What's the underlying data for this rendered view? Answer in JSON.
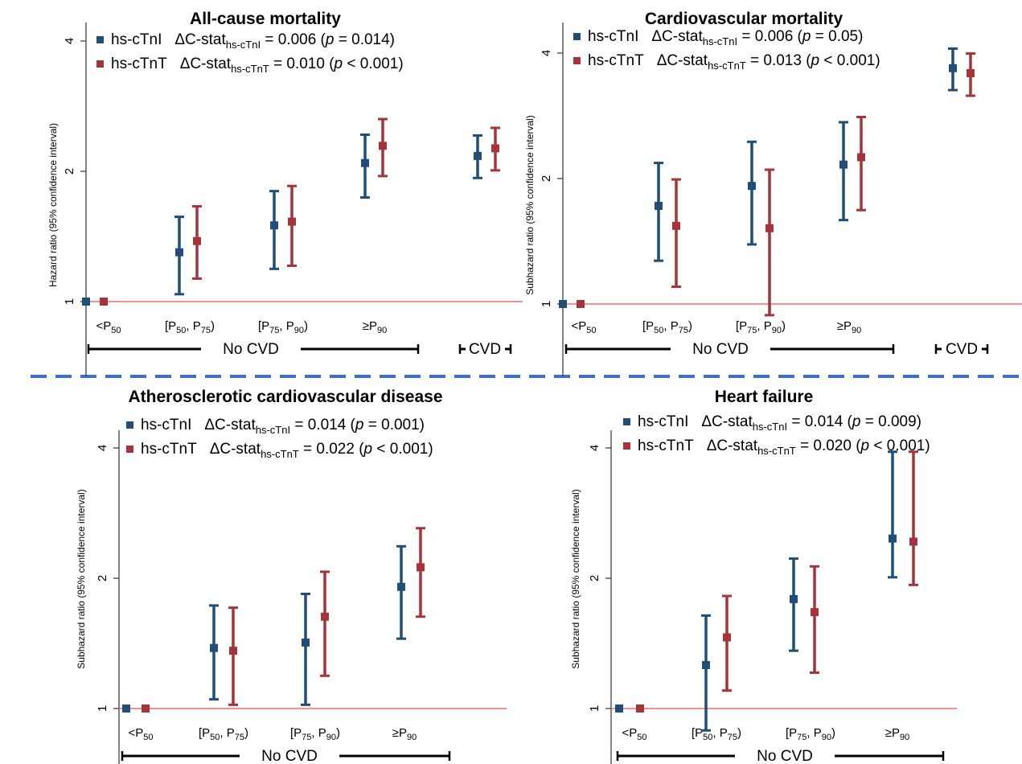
{
  "colors": {
    "hs_cTnI": "#1f4e79",
    "hs_cTnT": "#a4343a",
    "reference_line": "#f06b6b",
    "divider": "#3d6fd1"
  },
  "chart_data": [
    {
      "type": "scatter",
      "title": "All-cause mortality",
      "ylabel": "Hazard ratio (95% confidence interval)",
      "yscale": "log",
      "ylim": [
        0.72,
        4.2
      ],
      "yticks": [
        "1",
        "2",
        "4"
      ],
      "categories": [
        "<P50",
        "[P50, P75)",
        "[P75, P90)",
        "≥P90",
        "CVD"
      ],
      "category_labels": [
        {
          "main": "<P",
          "sub": "50",
          "rest": ""
        },
        {
          "main": "[P",
          "sub": "50",
          "rest": ", P",
          "sub2": "75",
          "rest2": ")"
        },
        {
          "main": "[P",
          "sub": "75",
          "rest": ", P",
          "sub2": "90",
          "rest2": ")"
        },
        {
          "main": "≥P",
          "sub": "90",
          "rest": ""
        },
        {
          "main": "",
          "sub": "",
          "rest": ""
        }
      ],
      "groups": [
        {
          "label": "No CVD"
        },
        {
          "label": "CVD"
        }
      ],
      "legend": [
        {
          "name": "hs-cTnI",
          "stat_pre": "ΔC-stat",
          "stat_sub": "hs-cTnI",
          "stat_val": " = 0.006 (",
          "p": "p",
          "p_val": " = 0.014)"
        },
        {
          "name": "hs-cTnT",
          "stat_pre": "ΔC-stat",
          "stat_sub": "hs-cTnT",
          "stat_val": " = 0.010 (",
          "p": "p",
          "p_val": " < 0.001)"
        }
      ],
      "series": [
        {
          "name": "hs-cTnI",
          "values": [
            {
              "est": 1.0,
              "lo": null,
              "hi": null
            },
            {
              "est": 1.3,
              "lo": 1.04,
              "hi": 1.57
            },
            {
              "est": 1.5,
              "lo": 1.19,
              "hi": 1.8
            },
            {
              "est": 2.09,
              "lo": 1.74,
              "hi": 2.43
            },
            {
              "est": 2.17,
              "lo": 1.93,
              "hi": 2.42
            }
          ]
        },
        {
          "name": "hs-cTnT",
          "values": [
            {
              "est": 1.0,
              "lo": null,
              "hi": null
            },
            {
              "est": 1.38,
              "lo": 1.13,
              "hi": 1.66
            },
            {
              "est": 1.53,
              "lo": 1.21,
              "hi": 1.85
            },
            {
              "est": 2.29,
              "lo": 1.95,
              "hi": 2.64
            },
            {
              "est": 2.26,
              "lo": 2.01,
              "hi": 2.52
            }
          ]
        }
      ]
    },
    {
      "type": "scatter",
      "title": "Cardiovascular mortality",
      "ylabel": "Subhazard ratio (95% confidence interval)",
      "yscale": "log",
      "ylim": [
        0.72,
        4.4
      ],
      "yticks": [
        "1",
        "2",
        "4"
      ],
      "categories": [
        "<P50",
        "[P50, P75)",
        "[P75, P90)",
        "≥P90",
        "CVD"
      ],
      "category_labels": [
        {
          "main": "<P",
          "sub": "50",
          "rest": ""
        },
        {
          "main": "[P",
          "sub": "50",
          "rest": ", P",
          "sub2": "75",
          "rest2": ")"
        },
        {
          "main": "[P",
          "sub": "75",
          "rest": ", P",
          "sub2": "90",
          "rest2": ")"
        },
        {
          "main": "≥P",
          "sub": "90",
          "rest": ""
        },
        {
          "main": "",
          "sub": "",
          "rest": ""
        }
      ],
      "groups": [
        {
          "label": "No CVD"
        },
        {
          "label": "CVD"
        }
      ],
      "legend": [
        {
          "name": "hs-cTnI",
          "stat_pre": "ΔC-stat",
          "stat_sub": "hs-cTnI",
          "stat_val": " = 0.006 (",
          "p": "p",
          "p_val": " = 0.05)"
        },
        {
          "name": "hs-cTnT",
          "stat_pre": "ΔC-stat",
          "stat_sub": "hs-cTnT",
          "stat_val": " = 0.013 (",
          "p": "p",
          "p_val": " < 0.001)"
        }
      ],
      "series": [
        {
          "name": "hs-cTnI",
          "values": [
            {
              "est": 1.0,
              "lo": null,
              "hi": null
            },
            {
              "est": 1.72,
              "lo": 1.27,
              "hi": 2.18
            },
            {
              "est": 1.92,
              "lo": 1.39,
              "hi": 2.45
            },
            {
              "est": 2.16,
              "lo": 1.59,
              "hi": 2.73
            },
            {
              "est": 3.68,
              "lo": 3.26,
              "hi": 4.1
            }
          ]
        },
        {
          "name": "hs-cTnT",
          "values": [
            {
              "est": 1.0,
              "lo": null,
              "hi": null
            },
            {
              "est": 1.54,
              "lo": 1.1,
              "hi": 1.99
            },
            {
              "est": 1.52,
              "lo": 0.94,
              "hi": 2.1
            },
            {
              "est": 2.25,
              "lo": 1.68,
              "hi": 2.81
            },
            {
              "est": 3.58,
              "lo": 3.16,
              "hi": 3.99
            }
          ]
        }
      ]
    },
    {
      "type": "scatter",
      "title": "Atherosclerotic cardiovascular disease",
      "ylabel": "Subhazard ratio (95% confidence interval)",
      "yscale": "log",
      "ylim": [
        0.72,
        4.2
      ],
      "yticks": [
        "1",
        "2",
        "4"
      ],
      "categories": [
        "<P50",
        "[P50, P75)",
        "[P75, P90)",
        "≥P90"
      ],
      "category_labels": [
        {
          "main": "<P",
          "sub": "50",
          "rest": ""
        },
        {
          "main": "[P",
          "sub": "50",
          "rest": ", P",
          "sub2": "75",
          "rest2": ")"
        },
        {
          "main": "[P",
          "sub": "75",
          "rest": ", P",
          "sub2": "90",
          "rest2": ")"
        },
        {
          "main": "≥P",
          "sub": "90",
          "rest": ""
        }
      ],
      "groups": [
        {
          "label": "No CVD"
        }
      ],
      "legend": [
        {
          "name": "hs-cTnI",
          "stat_pre": "ΔC-stat",
          "stat_sub": "hs-cTnI",
          "stat_val": " = 0.014 (",
          "p": "p",
          "p_val": " = 0.001)"
        },
        {
          "name": "hs-cTnT",
          "stat_pre": "ΔC-stat",
          "stat_sub": "hs-cTnT",
          "stat_val": " = 0.022 (",
          "p": "p",
          "p_val": " < 0.001)"
        }
      ],
      "series": [
        {
          "name": "hs-cTnI",
          "values": [
            {
              "est": 1.0,
              "lo": null,
              "hi": null
            },
            {
              "est": 1.38,
              "lo": 1.05,
              "hi": 1.73
            },
            {
              "est": 1.42,
              "lo": 1.02,
              "hi": 1.84
            },
            {
              "est": 1.91,
              "lo": 1.45,
              "hi": 2.37
            }
          ]
        },
        {
          "name": "hs-cTnT",
          "values": [
            {
              "est": 1.0,
              "lo": null,
              "hi": null
            },
            {
              "est": 1.36,
              "lo": 1.02,
              "hi": 1.71
            },
            {
              "est": 1.63,
              "lo": 1.19,
              "hi": 2.07
            },
            {
              "est": 2.12,
              "lo": 1.63,
              "hi": 2.61
            }
          ]
        }
      ]
    },
    {
      "type": "scatter",
      "title": "Heart failure",
      "ylabel": "Subhazard ratio (95% confidence interval)",
      "yscale": "log",
      "ylim": [
        0.72,
        4.3
      ],
      "yticks": [
        "1",
        "2",
        "4"
      ],
      "categories": [
        "<P50",
        "[P50, P75)",
        "[P75, P90)",
        "≥P90"
      ],
      "category_labels": [
        {
          "main": "<P",
          "sub": "50",
          "rest": ""
        },
        {
          "main": "[P",
          "sub": "50",
          "rest": ", P",
          "sub2": "75",
          "rest2": ")"
        },
        {
          "main": "[P",
          "sub": "75",
          "rest": ", P",
          "sub2": "90",
          "rest2": ")"
        },
        {
          "main": "≥P",
          "sub": "90",
          "rest": ""
        }
      ],
      "groups": [
        {
          "label": "No CVD"
        }
      ],
      "legend": [
        {
          "name": "hs-cTnI",
          "stat_pre": "ΔC-stat",
          "stat_sub": "hs-cTnI",
          "stat_val": " = 0.014 (",
          "p": "p",
          "p_val": " = 0.009)"
        },
        {
          "name": "hs-cTnT",
          "stat_pre": "ΔC-stat",
          "stat_sub": "hs-cTnT",
          "stat_val": " = 0.020 (",
          "p": "p",
          "p_val": " < 0.001)"
        }
      ],
      "series": [
        {
          "name": "hs-cTnI",
          "values": [
            {
              "est": 1.0,
              "lo": null,
              "hi": null
            },
            {
              "est": 1.26,
              "lo": 0.89,
              "hi": 1.64
            },
            {
              "est": 1.79,
              "lo": 1.36,
              "hi": 2.22
            },
            {
              "est": 2.47,
              "lo": 2.01,
              "hi": 3.92
            }
          ]
        },
        {
          "name": "hs-cTnT",
          "values": [
            {
              "est": 1.0,
              "lo": null,
              "hi": null
            },
            {
              "est": 1.46,
              "lo": 1.1,
              "hi": 1.82
            },
            {
              "est": 1.67,
              "lo": 1.21,
              "hi": 2.13
            },
            {
              "est": 2.43,
              "lo": 1.93,
              "hi": 3.92
            }
          ]
        }
      ]
    }
  ]
}
